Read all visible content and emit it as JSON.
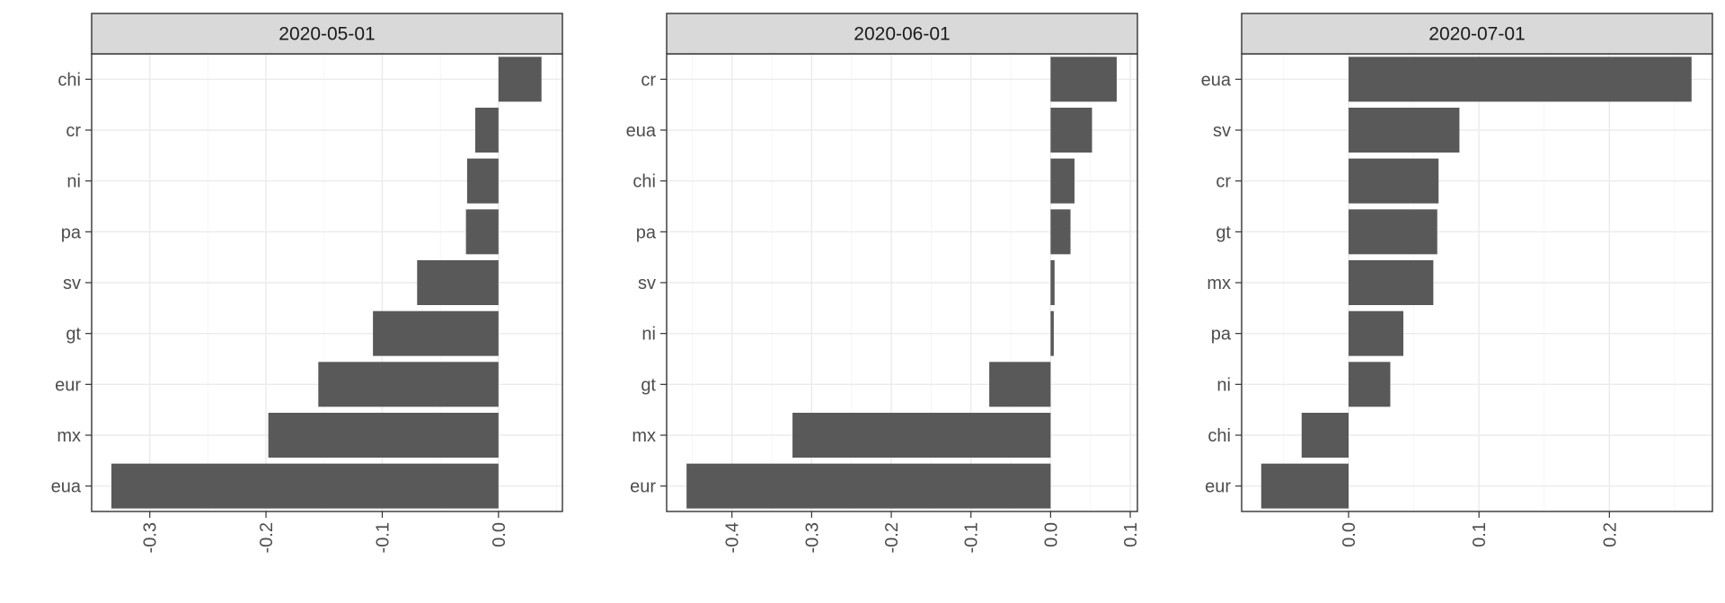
{
  "chart_data": [
    {
      "type": "bar",
      "orientation": "horizontal",
      "facet_label": "2020-05-01",
      "categories": [
        "chi",
        "cr",
        "ni",
        "pa",
        "sv",
        "gt",
        "eur",
        "mx",
        "eua"
      ],
      "values": [
        0.037,
        -0.02,
        -0.027,
        -0.028,
        -0.07,
        -0.108,
        -0.155,
        -0.198,
        -0.333
      ],
      "xlim": [
        -0.35,
        0.055
      ],
      "major_ticks": [
        -0.3,
        -0.2,
        -0.1,
        0.0
      ],
      "tick_labels": [
        "-0.3",
        "-0.2",
        "-0.1",
        "0.0"
      ],
      "grid": true
    },
    {
      "type": "bar",
      "orientation": "horizontal",
      "facet_label": "2020-06-01",
      "categories": [
        "cr",
        "eua",
        "chi",
        "pa",
        "sv",
        "ni",
        "gt",
        "mx",
        "eur"
      ],
      "values": [
        0.083,
        0.052,
        0.03,
        0.025,
        0.005,
        0.004,
        -0.077,
        -0.324,
        -0.457
      ],
      "xlim": [
        -0.482,
        0.109
      ],
      "major_ticks": [
        -0.4,
        -0.3,
        -0.2,
        -0.1,
        0.0,
        0.1
      ],
      "tick_labels": [
        "-0.4",
        "-0.3",
        "-0.2",
        "-0.1",
        "0.0",
        "0.1"
      ],
      "grid": true
    },
    {
      "type": "bar",
      "orientation": "horizontal",
      "facet_label": "2020-07-01",
      "categories": [
        "eua",
        "sv",
        "cr",
        "gt",
        "mx",
        "pa",
        "ni",
        "chi",
        "eur"
      ],
      "values": [
        0.263,
        0.085,
        0.069,
        0.068,
        0.065,
        0.042,
        0.032,
        -0.036,
        -0.067
      ],
      "xlim": [
        -0.082,
        0.279
      ],
      "major_ticks": [
        0.0,
        0.1,
        0.2
      ],
      "tick_labels": [
        "0.0",
        "0.1",
        "0.2"
      ],
      "grid": true
    }
  ]
}
